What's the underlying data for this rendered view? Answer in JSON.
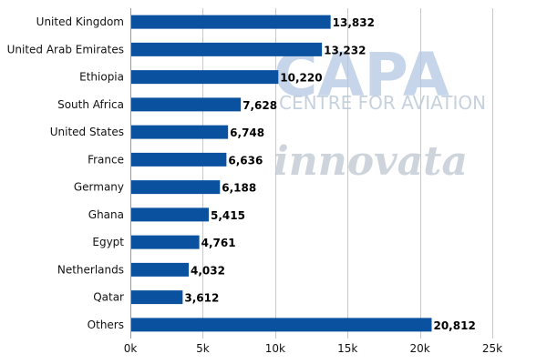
{
  "watermarks": {
    "capa": "CAPA",
    "capa_sub": "CENTRE FOR AVIATION",
    "innovata": "innovata"
  },
  "chart_data": {
    "type": "bar",
    "orientation": "horizontal",
    "categories": [
      "United Kingdom",
      "United Arab Emirates",
      "Ethiopia",
      "South Africa",
      "United States",
      "France",
      "Germany",
      "Ghana",
      "Egypt",
      "Netherlands",
      "Qatar",
      "Others"
    ],
    "values": [
      13832,
      13232,
      10220,
      7628,
      6748,
      6636,
      6188,
      5415,
      4761,
      4032,
      3612,
      20812
    ],
    "value_labels": [
      "13,832",
      "13,232",
      "10,220",
      "7,628",
      "6,748",
      "6,636",
      "6,188",
      "5,415",
      "4,761",
      "4,032",
      "3,612",
      "20,812"
    ],
    "xlim": [
      0,
      25000
    ],
    "xticks": [
      0,
      5000,
      10000,
      15000,
      20000,
      25000
    ],
    "xtick_labels": [
      "0k",
      "5k",
      "10k",
      "15k",
      "20k",
      "25k"
    ],
    "grid": "vertical",
    "bar_color": "#0a52a0",
    "title": "",
    "xlabel": "",
    "ylabel": ""
  }
}
